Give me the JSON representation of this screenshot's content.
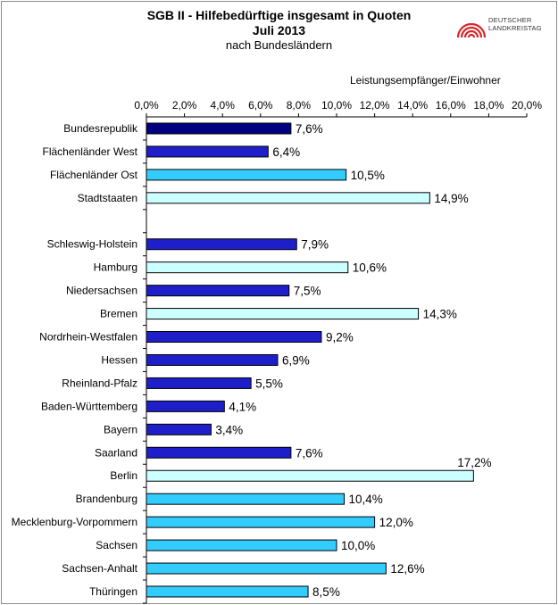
{
  "titles": {
    "line1": "SGB II - Hilfebedürftige insgesamt in Quoten",
    "line2": "Juli 2013",
    "line3": "nach Bundesländern"
  },
  "logo": {
    "line1": "DEUTSCHER",
    "line2": "LANDKREISTAG",
    "icon": "arcs-logo-icon",
    "color": "#d9262b"
  },
  "unit_label": "Leistungsempfänger/Einwohner",
  "chart_data": {
    "type": "bar",
    "orientation": "horizontal",
    "xlim": [
      0,
      20
    ],
    "xticks": [
      "0,0%",
      "2,0%",
      "4,0%",
      "6,0%",
      "8,0%",
      "10,0%",
      "12,0%",
      "14,0%",
      "16,0%",
      "18,0%",
      "20,0%"
    ],
    "grid": false,
    "categories": [
      "Bundesrepublik",
      "Flächenländer West",
      "Flächenländer Ost",
      "Stadtstaaten",
      "",
      "Schleswig-Holstein",
      "Hamburg",
      "Niedersachsen",
      "Bremen",
      "Nordrhein-Westfalen",
      "Hessen",
      "Rheinland-Pfalz",
      "Baden-Württemberg",
      "Bayern",
      "Saarland",
      "Berlin",
      "Brandenburg",
      "Mecklenburg-Vorpommern",
      "Sachsen",
      "Sachsen-Anhalt",
      "Thüringen"
    ],
    "values": [
      7.6,
      6.4,
      10.5,
      14.9,
      null,
      7.9,
      10.6,
      7.5,
      14.3,
      9.2,
      6.9,
      5.5,
      4.1,
      3.4,
      7.6,
      17.2,
      10.4,
      12.0,
      10.0,
      12.6,
      8.5
    ],
    "labels": [
      "7,6%",
      "6,4%",
      "10,5%",
      "14,9%",
      "",
      "7,9%",
      "10,6%",
      "7,5%",
      "14,3%",
      "9,2%",
      "6,9%",
      "5,5%",
      "4,1%",
      "3,4%",
      "7,6%",
      "17,2%",
      "10,4%",
      "12,0%",
      "10,0%",
      "12,6%",
      "8,5%"
    ],
    "colors": [
      "#000080",
      "#1f1fc9",
      "#33ccff",
      "#ccffff",
      "",
      "#1f1fc9",
      "#ccffff",
      "#1f1fc9",
      "#ccffff",
      "#1f1fc9",
      "#1f1fc9",
      "#1f1fc9",
      "#1f1fc9",
      "#1f1fc9",
      "#1f1fc9",
      "#ccffff",
      "#33ccff",
      "#33ccff",
      "#33ccff",
      "#33ccff",
      "#33ccff"
    ]
  }
}
